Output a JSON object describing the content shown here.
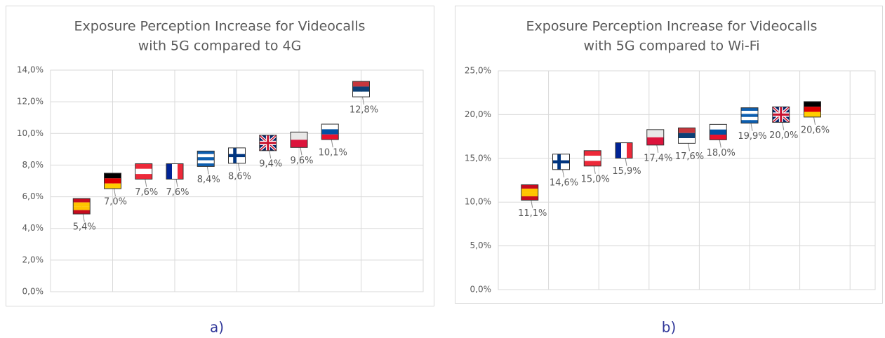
{
  "chart_data": [
    {
      "type": "scatter",
      "title": [
        "Exposure Perception Increase for Videocalls",
        "with 5G compared to 4G"
      ],
      "caption": "a)",
      "values": [
        5.4,
        7.0,
        7.6,
        7.6,
        8.4,
        8.6,
        9.4,
        9.6,
        10.1,
        12.8
      ],
      "value_labels": [
        "5,4%",
        "7,0%",
        "7,6%",
        "7,6%",
        "8,4%",
        "8,6%",
        "9,4%",
        "9,6%",
        "10,1%",
        "12,8%"
      ],
      "marker_patterns": [
        "h",
        "h",
        "h",
        "v",
        "h",
        "cross",
        "union",
        "h",
        "h",
        "h"
      ],
      "marker_colors": [
        [
          "#c60b1e",
          "#ffc400",
          "#ffc400",
          "#c60b1e"
        ],
        [
          "#000000",
          "#dd0000",
          "#ffce00"
        ],
        [
          "#ed2939",
          "#ffffff",
          "#ed2939"
        ],
        [
          "#002395",
          "#ffffff",
          "#ed2939"
        ],
        [
          "#0d5eaf",
          "#ffffff",
          "#0d5eaf",
          "#ffffff",
          "#0d5eaf"
        ],
        [
          "#ffffff",
          "#003580"
        ],
        [
          "#012169",
          "#ffffff",
          "#c8102e"
        ],
        [
          "#e9e8e7",
          "#dc143c"
        ],
        [
          "#ffffff",
          "#0051a3",
          "#e8112d"
        ],
        [
          "#c6363c",
          "#0c4076",
          "#ffffff"
        ]
      ],
      "ylim": [
        0,
        14
      ],
      "yticks": [
        {
          "value": 0,
          "label": "0,0%"
        },
        {
          "value": 2,
          "label": "2,0%"
        },
        {
          "value": 4,
          "label": "4,0%"
        },
        {
          "value": 6,
          "label": "6,0%"
        },
        {
          "value": 8,
          "label": "8,0%"
        },
        {
          "value": 10,
          "label": "10,0%"
        },
        {
          "value": 12,
          "label": "12,0%"
        },
        {
          "value": 14,
          "label": "14,0%"
        }
      ],
      "grid": true
    },
    {
      "type": "scatter",
      "title": [
        "Exposure Perception Increase for Videocalls",
        "with 5G compared to Wi-Fi"
      ],
      "caption": "b)",
      "values": [
        11.1,
        14.6,
        15.0,
        15.9,
        17.4,
        17.6,
        18.0,
        19.9,
        20.0,
        20.6
      ],
      "value_labels": [
        "11,1%",
        "14,6%",
        "15,0%",
        "15,9%",
        "17,4%",
        "17,6%",
        "18,0%",
        "19,9%",
        "20,0%",
        "20,6%"
      ],
      "marker_patterns": [
        "h",
        "cross",
        "h",
        "v",
        "h",
        "h",
        "h",
        "h",
        "union",
        "h"
      ],
      "marker_colors": [
        [
          "#c60b1e",
          "#ffc400",
          "#ffc400",
          "#c60b1e"
        ],
        [
          "#ffffff",
          "#003580"
        ],
        [
          "#ed2939",
          "#ffffff",
          "#ed2939"
        ],
        [
          "#002395",
          "#ffffff",
          "#ed2939"
        ],
        [
          "#e9e8e7",
          "#dc143c"
        ],
        [
          "#c6363c",
          "#0c4076",
          "#ffffff"
        ],
        [
          "#ffffff",
          "#0051a3",
          "#e8112d"
        ],
        [
          "#0d5eaf",
          "#ffffff",
          "#0d5eaf",
          "#ffffff",
          "#0d5eaf"
        ],
        [
          "#012169",
          "#ffffff",
          "#c8102e"
        ],
        [
          "#000000",
          "#dd0000",
          "#ffce00"
        ]
      ],
      "ylim": [
        0,
        25
      ],
      "yticks": [
        {
          "value": 0,
          "label": "0,0%"
        },
        {
          "value": 5,
          "label": "5,0%"
        },
        {
          "value": 10,
          "label": "10,0%"
        },
        {
          "value": 15,
          "label": "15,0%"
        },
        {
          "value": 20,
          "label": "20,0%"
        },
        {
          "value": 25,
          "label": "25,0%"
        }
      ],
      "grid": true
    }
  ]
}
